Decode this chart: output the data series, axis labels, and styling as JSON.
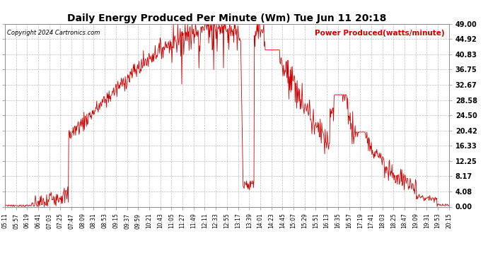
{
  "title": "Daily Energy Produced Per Minute (Wm) Tue Jun 11 20:18",
  "copyright": "Copyright 2024 Cartronics.com",
  "legend_label": "Power Produced(watts/minute)",
  "legend_color": "#cc0000",
  "copyright_color": "#000000",
  "background_color": "#ffffff",
  "line_color": "#cc0000",
  "grid_color": "#bbbbbb",
  "ytick_labels": [
    "49.00",
    "44.92",
    "40.83",
    "36.75",
    "32.67",
    "28.58",
    "24.50",
    "20.42",
    "16.33",
    "12.25",
    "8.17",
    "4.08",
    "0.00"
  ],
  "ytick_values": [
    49.0,
    44.92,
    40.83,
    36.75,
    32.67,
    28.58,
    24.5,
    20.42,
    16.33,
    12.25,
    8.17,
    4.08,
    0.0
  ],
  "ymin": 0.0,
  "ymax": 49.0,
  "xtick_labels": [
    "05:11",
    "05:57",
    "06:19",
    "06:41",
    "07:03",
    "07:25",
    "07:47",
    "08:09",
    "08:31",
    "08:53",
    "09:15",
    "09:37",
    "09:59",
    "10:21",
    "10:43",
    "11:05",
    "11:27",
    "11:49",
    "12:11",
    "12:33",
    "12:55",
    "13:17",
    "13:39",
    "14:01",
    "14:23",
    "14:45",
    "15:07",
    "15:29",
    "15:51",
    "16:13",
    "16:35",
    "16:57",
    "17:19",
    "17:41",
    "18:03",
    "18:25",
    "18:47",
    "19:09",
    "19:31",
    "19:53",
    "20:15"
  ]
}
